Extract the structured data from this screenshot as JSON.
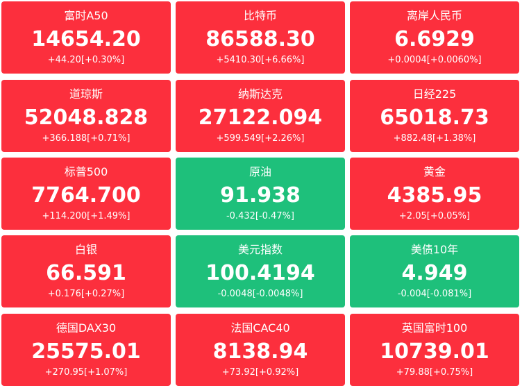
{
  "tiles": [
    {
      "name": "富时A50",
      "price": "14654.20",
      "change": "+44.20[+0.30%]",
      "color": "#fc2f3d"
    },
    {
      "name": "比特币",
      "price": "86588.30",
      "change": "+5410.30[+6.66%]",
      "color": "#fc2f3d"
    },
    {
      "name": "离岸人民币",
      "price": "6.6929",
      "change": "+0.0004[+0.0060%]",
      "color": "#fc2f3d"
    },
    {
      "name": "道琼斯",
      "price": "52048.828",
      "change": "+366.188[+0.71%]",
      "color": "#fc2f3d"
    },
    {
      "name": "纳斯达克",
      "price": "27122.094",
      "change": "+599.549[+2.26%]",
      "color": "#fc2f3d"
    },
    {
      "name": "日经225",
      "price": "65018.73",
      "change": "+882.48[+1.38%]",
      "color": "#fc2f3d"
    },
    {
      "name": "标普500",
      "price": "7764.700",
      "change": "+114.200[+1.49%]",
      "color": "#fc2f3d"
    },
    {
      "name": "原油",
      "price": "91.938",
      "change": "-0.432[-0.47%]",
      "color": "#1ec07b"
    },
    {
      "name": "黄金",
      "price": "4385.95",
      "change": "+2.05[+0.05%]",
      "color": "#fc2f3d"
    },
    {
      "name": "白银",
      "price": "66.591",
      "change": "+0.176[+0.27%]",
      "color": "#fc2f3d"
    },
    {
      "name": "美元指数",
      "price": "100.4194",
      "change": "-0.0048[-0.0048%]",
      "color": "#1ec07b"
    },
    {
      "name": "美债10年",
      "price": "4.949",
      "change": "-0.004[-0.081%]",
      "color": "#1ec07b"
    },
    {
      "name": "德国DAX30",
      "price": "25575.01",
      "change": "+270.95[+1.07%]",
      "color": "#fc2f3d"
    },
    {
      "name": "法国CAC40",
      "price": "8138.94",
      "change": "+73.92[+0.92%]",
      "color": "#fc2f3d"
    },
    {
      "name": "英国富时100",
      "price": "10739.01",
      "change": "+79.88[+0.75%]",
      "color": "#fc2f3d"
    }
  ]
}
